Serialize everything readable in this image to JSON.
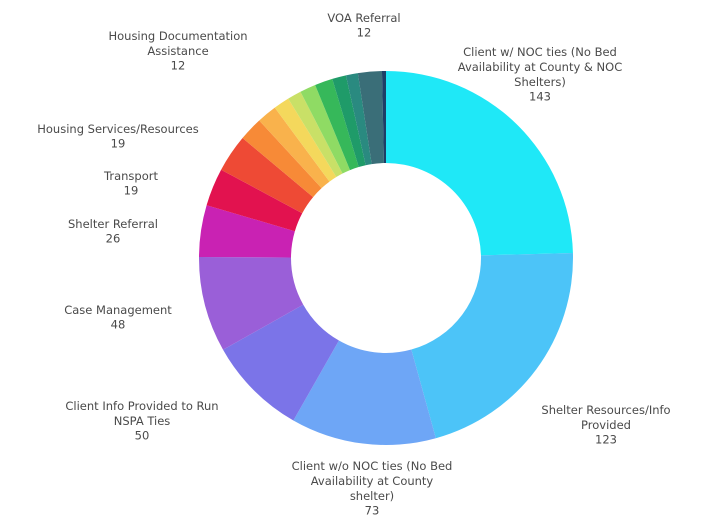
{
  "chart_data": {
    "type": "donut",
    "categories": [
      "Client w/ NOC ties (No Bed Availability at County & NOC Shelters)",
      "Shelter Resources/Info Provided",
      "Client w/o NOC ties (No Bed Availability at County shelter)",
      "Client Info Provided to Run NSPA Ties",
      "Case Management",
      "Shelter Referral",
      "Transport",
      "Housing Services/Resources",
      "Housing Documentation Assistance",
      null,
      null,
      null,
      null,
      null,
      null,
      null,
      "VOA Referral",
      null
    ],
    "values": [
      143,
      123,
      73,
      50,
      48,
      26,
      19,
      19,
      12,
      10,
      8,
      7,
      8,
      9,
      7,
      6,
      12,
      2
    ],
    "colors": [
      "#1fe8f7",
      "#4cc4f8",
      "#6ea6f6",
      "#7b74e8",
      "#9a5fd8",
      "#c922b3",
      "#e2124f",
      "#ee4a35",
      "#f78a37",
      "#f9b24c",
      "#f4d85c",
      "#c9e067",
      "#8fdb64",
      "#36b85a",
      "#1f9b69",
      "#2a8a80",
      "#3a6e78",
      "#1d3f66",
      "#7a3fa0"
    ]
  }
}
